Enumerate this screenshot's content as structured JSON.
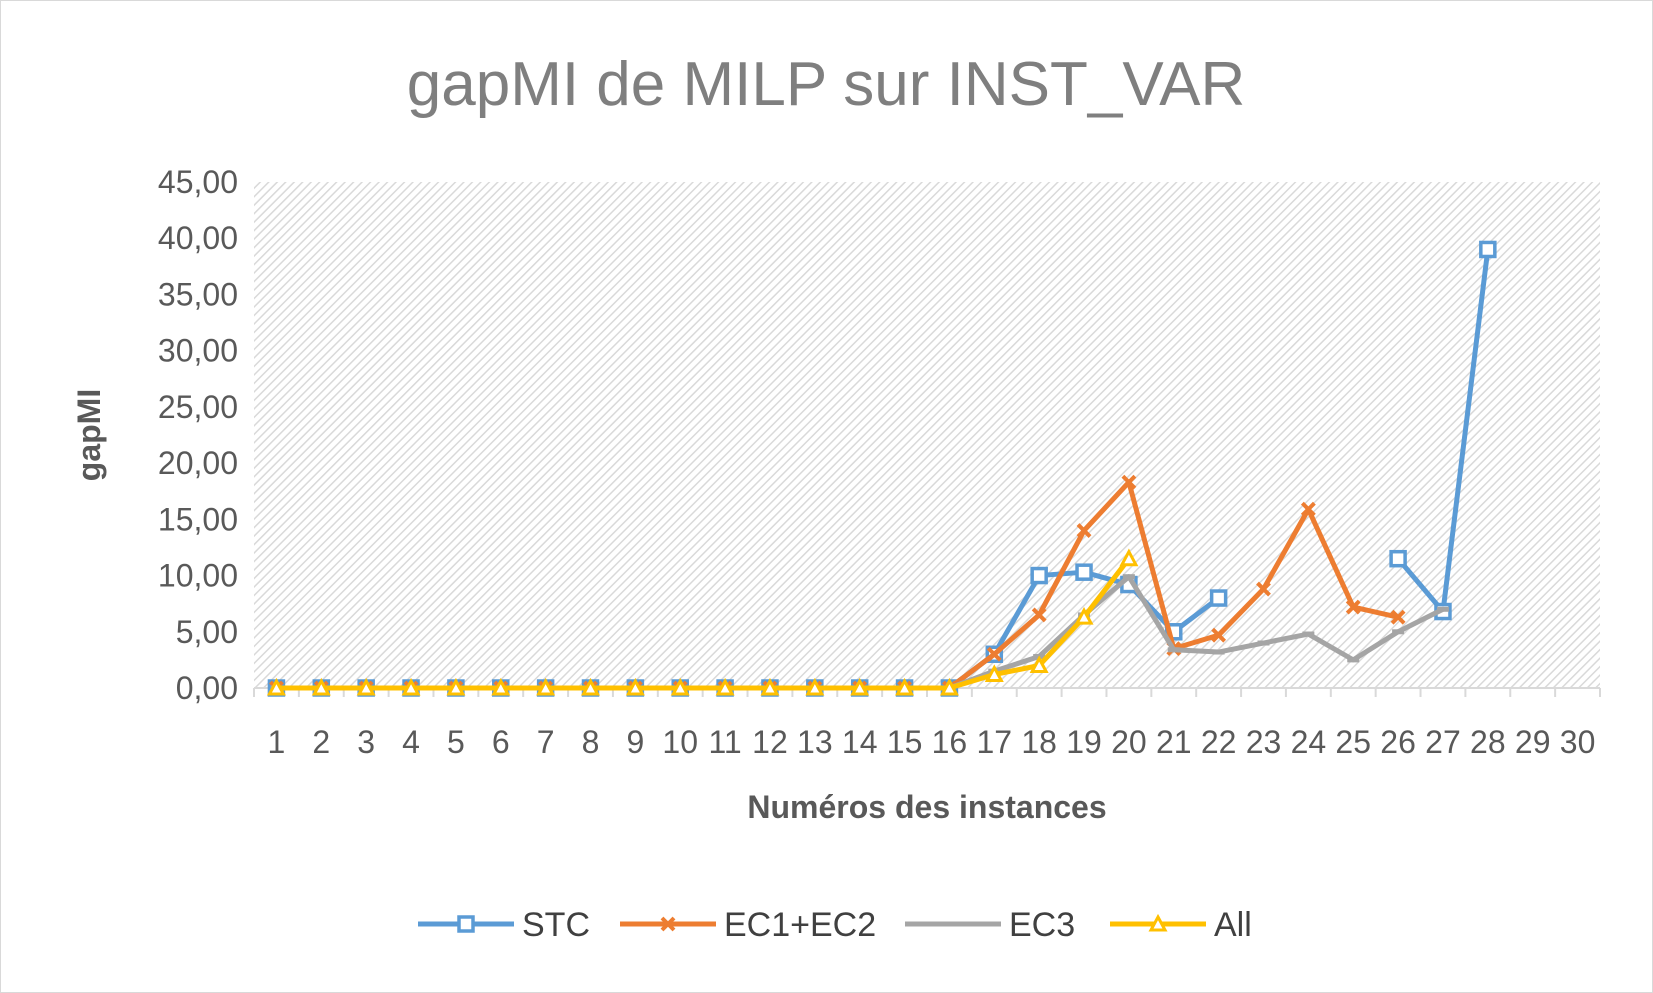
{
  "chart_data": {
    "type": "line",
    "title": "gapMI de MILP sur INST_VAR",
    "xlabel": "Numéros des instances",
    "ylabel": "gapMI",
    "categories": [
      "1",
      "2",
      "3",
      "4",
      "5",
      "6",
      "7",
      "8",
      "9",
      "10",
      "11",
      "12",
      "13",
      "14",
      "15",
      "16",
      "17",
      "18",
      "19",
      "20",
      "21",
      "22",
      "23",
      "24",
      "25",
      "26",
      "27",
      "28",
      "29",
      "30"
    ],
    "y_ticks": [
      "0,00",
      "5,00",
      "10,00",
      "15,00",
      "20,00",
      "25,00",
      "30,00",
      "35,00",
      "40,00",
      "45,00"
    ],
    "ylim": [
      0,
      45
    ],
    "grid": false,
    "plot_background": "diagonal hatch",
    "legend_position": "bottom",
    "series": [
      {
        "name": "STC",
        "color": "#5b9bd5",
        "marker": "square",
        "values": [
          0,
          0,
          0,
          0,
          0,
          0,
          0,
          0,
          0,
          0,
          0,
          0,
          0,
          0,
          0,
          0,
          3.0,
          10.0,
          10.3,
          9.2,
          5.0,
          8.0,
          null,
          null,
          null,
          11.5,
          6.8,
          39.0,
          null,
          null
        ]
      },
      {
        "name": "EC1+EC2",
        "color": "#ed7d31",
        "marker": "x",
        "values": [
          0,
          0,
          0,
          0,
          0,
          0,
          0,
          0,
          0,
          0,
          0,
          0,
          0,
          0,
          0,
          0,
          3.0,
          6.5,
          14.0,
          18.3,
          3.5,
          4.7,
          8.8,
          15.9,
          7.2,
          6.3,
          null,
          null,
          null,
          null
        ]
      },
      {
        "name": "EC3",
        "color": "#a5a5a5",
        "marker": "dash",
        "values": [
          0,
          0,
          0,
          0,
          0,
          0,
          0,
          0,
          0,
          0,
          0,
          0,
          0,
          0,
          0,
          0,
          1.5,
          2.8,
          6.5,
          9.9,
          3.4,
          3.2,
          4.0,
          4.8,
          2.5,
          5.0,
          7.0,
          null,
          null,
          null
        ]
      },
      {
        "name": "All",
        "color": "#ffc000",
        "marker": "triangle",
        "values": [
          0,
          0,
          0,
          0,
          0,
          0,
          0,
          0,
          0,
          0,
          0,
          0,
          0,
          0,
          0,
          0,
          1.2,
          2.0,
          6.3,
          11.5,
          null,
          null,
          null,
          null,
          null,
          null,
          null,
          null,
          null,
          null
        ]
      }
    ]
  }
}
